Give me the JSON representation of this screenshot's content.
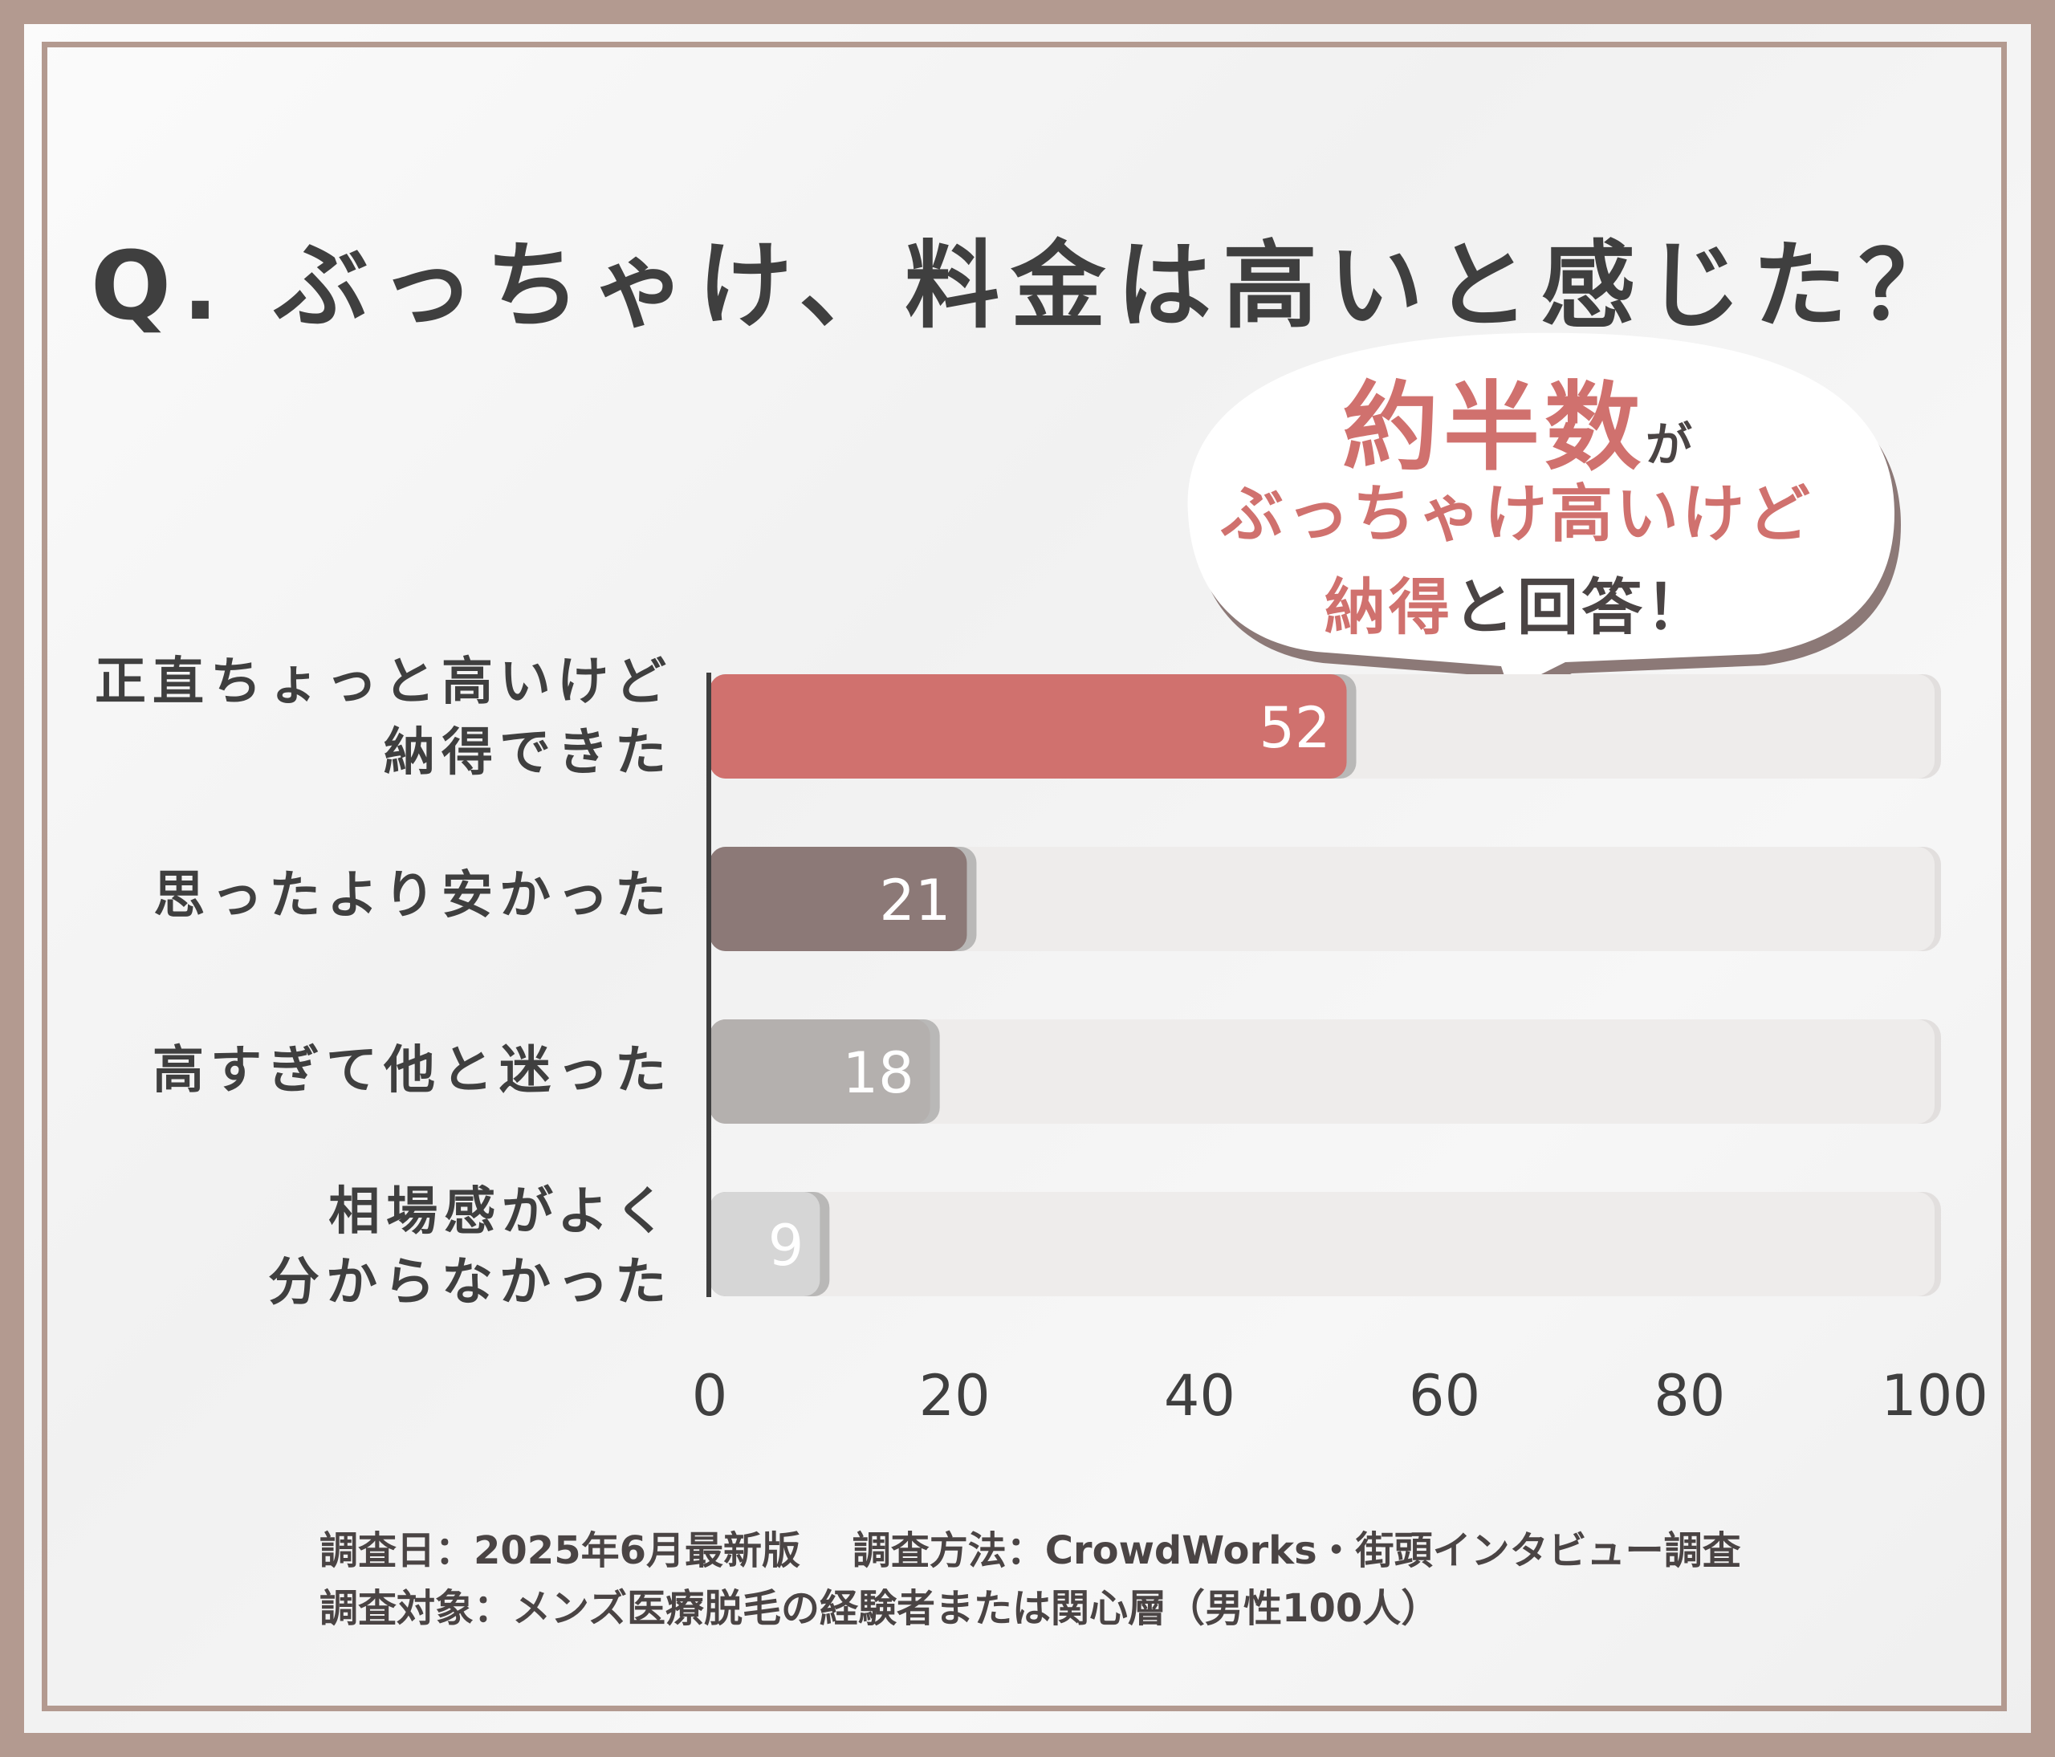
{
  "title": "Q. ぶっちゃけ、料金は高いと感じた？",
  "callout": {
    "line1_main": "約半数",
    "line1_small": "が",
    "line2": "ぶっちゃけ高いけど",
    "line3_pink": "納得",
    "line3_rest": "と回答！"
  },
  "chart_data": {
    "type": "bar",
    "orientation": "horizontal",
    "categories": [
      "正直ちょっと高いけど\n納得できた",
      "思ったより安かった",
      "高すぎて他と迷った",
      "相場感がよく\n分からなかった"
    ],
    "values": [
      52,
      21,
      18,
      9
    ],
    "value_labels": [
      "52",
      "21",
      "18",
      "9"
    ],
    "colors": [
      "#d0716e",
      "#8c7977",
      "#b4b0ae",
      "#d6d6d6"
    ],
    "track_color": "#eeeceb",
    "xlim": [
      0,
      100
    ],
    "xticks": [
      0,
      20,
      40,
      60,
      80,
      100
    ],
    "xtick_labels": [
      "0",
      "20",
      "40",
      "60",
      "80",
      "100"
    ],
    "grid": false,
    "legend": "none"
  },
  "footnote": {
    "line1": "調査日：2025年6月最新版　 調査方法：CrowdWorks・街頭インタビュー調査",
    "line2": "調査対象：メンズ医療脱毛の経験者または関心層（男性100人）"
  }
}
